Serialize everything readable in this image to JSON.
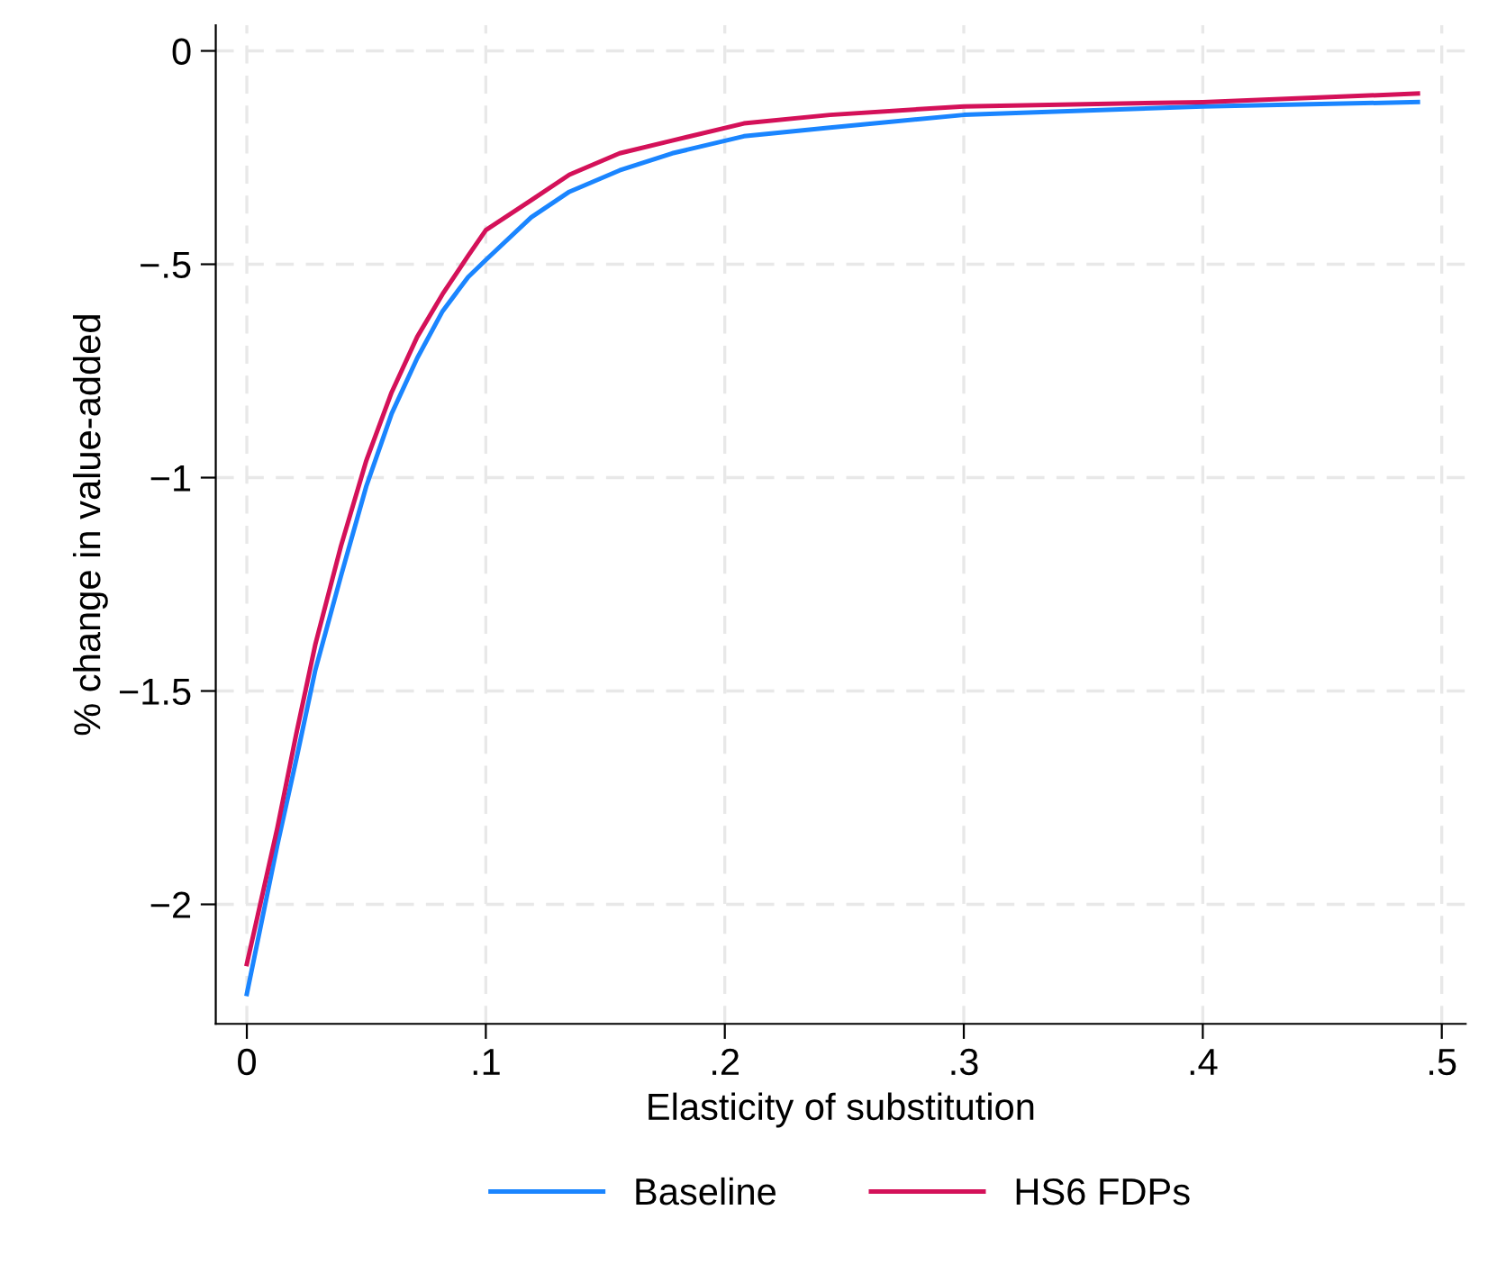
{
  "chart_data": {
    "type": "line",
    "xlabel": "Elasticity of substitution",
    "ylabel": "% change in value-added",
    "xlim": [
      -0.013,
      0.51
    ],
    "ylim": [
      -2.28,
      0.06
    ],
    "xticks": [
      {
        "value": 0,
        "label": "0"
      },
      {
        "value": 0.1,
        "label": ".1"
      },
      {
        "value": 0.2,
        "label": ".2"
      },
      {
        "value": 0.3,
        "label": ".3"
      },
      {
        "value": 0.4,
        "label": ".4"
      },
      {
        "value": 0.5,
        "label": ".5"
      }
    ],
    "yticks": [
      {
        "value": 0,
        "label": "0"
      },
      {
        "value": -0.5,
        "label": "−.5"
      },
      {
        "value": -1,
        "label": "−1"
      },
      {
        "value": -1.5,
        "label": "−1.5"
      },
      {
        "value": -2,
        "label": "−2"
      }
    ],
    "grid": true,
    "legend": "bottom",
    "line_style": "solid",
    "marker": "none",
    "series": [
      {
        "name": "Baseline",
        "color": "#1a85ff",
        "x": [
          0,
          0.0128,
          0.0207,
          0.0287,
          0.0394,
          0.05,
          0.0606,
          0.0713,
          0.0819,
          0.0926,
          0.1,
          0.119,
          0.135,
          0.156,
          0.178,
          0.208,
          0.244,
          0.3,
          0.4,
          0.49
        ],
        "values": [
          -2.21,
          -1.86,
          -1.66,
          -1.45,
          -1.23,
          -1.02,
          -0.85,
          -0.72,
          -0.61,
          -0.53,
          -0.49,
          -0.39,
          -0.33,
          -0.28,
          -0.24,
          -0.2,
          -0.18,
          -0.15,
          -0.13,
          -0.12
        ]
      },
      {
        "name": "HS6 FDPs",
        "color": "#d41159",
        "x": [
          0,
          0.0128,
          0.0207,
          0.0287,
          0.0394,
          0.05,
          0.0606,
          0.0713,
          0.0819,
          0.0926,
          0.1,
          0.119,
          0.135,
          0.156,
          0.178,
          0.208,
          0.244,
          0.3,
          0.4,
          0.49
        ],
        "values": [
          -2.14,
          -1.82,
          -1.6,
          -1.39,
          -1.16,
          -0.96,
          -0.8,
          -0.67,
          -0.57,
          -0.48,
          -0.42,
          -0.35,
          -0.29,
          -0.24,
          -0.21,
          -0.17,
          -0.15,
          -0.13,
          -0.12,
          -0.1
        ]
      }
    ]
  }
}
